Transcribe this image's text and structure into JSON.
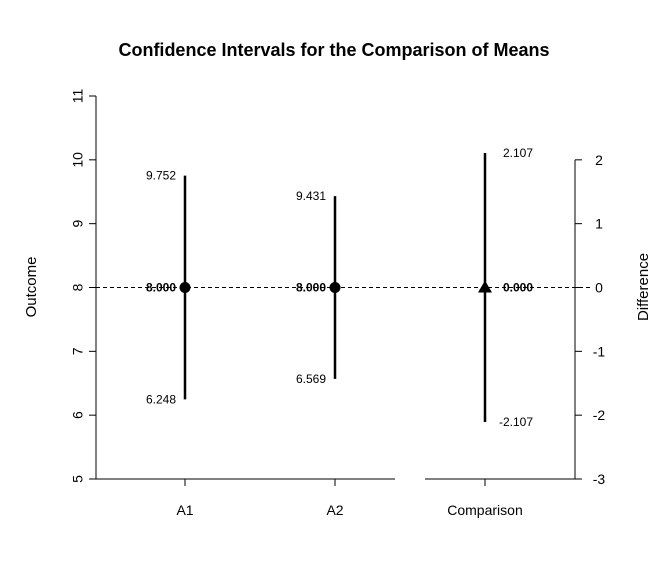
{
  "chart_data": {
    "type": "scatter",
    "title": "Confidence Intervals for the Comparison of Means",
    "ylabel": "Outcome",
    "y2label": "Difference",
    "categories": [
      "A1",
      "A2",
      "Comparison"
    ],
    "ylim": [
      5,
      11
    ],
    "yticks": [
      5,
      6,
      7,
      8,
      9,
      10,
      11
    ],
    "y2lim": [
      -3,
      3
    ],
    "y2ticks": [
      -3,
      -2,
      -1,
      0,
      1,
      2
    ],
    "reference_line": 8,
    "grid": false,
    "series": [
      {
        "category": "A1",
        "axis": "left",
        "marker": "circle",
        "mean": 8.0,
        "lower": 6.248,
        "upper": 9.752,
        "mean_label": "8.000",
        "lower_label": "6.248",
        "upper_label": "9.752"
      },
      {
        "category": "A2",
        "axis": "left",
        "marker": "circle",
        "mean": 8.0,
        "lower": 6.569,
        "upper": 9.431,
        "mean_label": "8.000",
        "lower_label": "6.569",
        "upper_label": "9.431"
      },
      {
        "category": "Comparison",
        "axis": "right",
        "marker": "triangle",
        "mean": 0.0,
        "lower": -2.107,
        "upper": 2.107,
        "mean_label": "0.000",
        "lower_label": "-2.107",
        "upper_label": "2.107"
      }
    ]
  }
}
